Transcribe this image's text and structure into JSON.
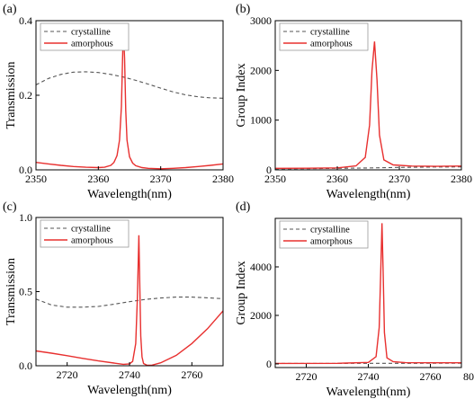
{
  "chart_data": [
    {
      "panel_label": "(a)",
      "type": "line",
      "xlabel": "Wavelength(nm)",
      "ylabel": "Transmission",
      "xlim": [
        2350,
        2380
      ],
      "ylim": [
        0,
        0.4
      ],
      "xticks": [
        2350,
        2360,
        2370,
        2380
      ],
      "yticks": [
        0.0,
        0.2,
        0.4
      ],
      "xtick_labels": [
        "2350",
        "2360",
        "2370",
        "2380"
      ],
      "ytick_labels": [
        "0.0",
        "0.2",
        "0.4"
      ],
      "legend": "top-left",
      "series": [
        {
          "name": "crystalline",
          "style": "dashed",
          "color": "#555555",
          "x": [
            2350,
            2352,
            2354,
            2356,
            2358,
            2360,
            2362,
            2364,
            2366,
            2368,
            2370,
            2372,
            2374,
            2376,
            2378,
            2380
          ],
          "y": [
            0.228,
            0.245,
            0.256,
            0.262,
            0.263,
            0.261,
            0.256,
            0.249,
            0.24,
            0.23,
            0.219,
            0.209,
            0.201,
            0.196,
            0.193,
            0.192
          ]
        },
        {
          "name": "amorphous",
          "style": "solid",
          "color": "#e8302f",
          "x": [
            2350,
            2352,
            2354,
            2356,
            2358,
            2360,
            2361,
            2362,
            2362.5,
            2363,
            2363.4,
            2363.7,
            2364,
            2364.2,
            2364.4,
            2364.6,
            2365,
            2365.5,
            2366,
            2367,
            2368,
            2370,
            2372,
            2374,
            2376,
            2378,
            2380
          ],
          "y": [
            0.02,
            0.016,
            0.012,
            0.009,
            0.007,
            0.006,
            0.007,
            0.012,
            0.02,
            0.038,
            0.08,
            0.17,
            0.38,
            0.3,
            0.16,
            0.08,
            0.035,
            0.018,
            0.011,
            0.006,
            0.004,
            0.003,
            0.004,
            0.006,
            0.009,
            0.012,
            0.016
          ]
        }
      ]
    },
    {
      "panel_label": "(b)",
      "type": "line",
      "xlabel": "Wavelength(nm)",
      "ylabel": "Group Index",
      "xlim": [
        2350,
        2380
      ],
      "ylim": [
        0,
        3000
      ],
      "xticks": [
        2350,
        2360,
        2370,
        2380
      ],
      "yticks": [
        0,
        1000,
        2000,
        3000
      ],
      "xtick_labels": [
        "2350",
        "2360",
        "2370",
        "2380"
      ],
      "ytick_labels": [
        "0",
        "1000",
        "2000",
        "3000"
      ],
      "legend": "top-left",
      "series": [
        {
          "name": "crystalline",
          "style": "dashed",
          "color": "#555555",
          "x": [
            2350,
            2355,
            2360,
            2365,
            2370,
            2375,
            2380
          ],
          "y": [
            20,
            24,
            30,
            38,
            48,
            56,
            60
          ]
        },
        {
          "name": "amorphous",
          "style": "solid",
          "color": "#e8302f",
          "x": [
            2350,
            2355,
            2360,
            2363,
            2364.5,
            2365.2,
            2365.6,
            2366,
            2366.4,
            2366.8,
            2367.5,
            2369,
            2372,
            2376,
            2380
          ],
          "y": [
            30,
            32,
            40,
            80,
            250,
            900,
            2000,
            2580,
            1800,
            700,
            200,
            100,
            75,
            70,
            75
          ]
        }
      ]
    },
    {
      "panel_label": "(c)",
      "type": "line",
      "xlabel": "Wavelength(nm)",
      "ylabel": "Transmission",
      "xlim": [
        2710,
        2770
      ],
      "ylim": [
        0,
        1.0
      ],
      "xticks": [
        2720,
        2740,
        2760
      ],
      "yticks": [
        0.0,
        0.5,
        1.0
      ],
      "xtick_labels": [
        "2720",
        "2740",
        "2760"
      ],
      "ytick_labels": [
        "0.0",
        "0.5",
        "1.0"
      ],
      "legend": "top-left",
      "series": [
        {
          "name": "crystalline",
          "style": "dashed",
          "color": "#555555",
          "x": [
            2710,
            2715,
            2720,
            2725,
            2730,
            2735,
            2740,
            2745,
            2750,
            2755,
            2760,
            2765,
            2770
          ],
          "y": [
            0.45,
            0.41,
            0.395,
            0.395,
            0.4,
            0.415,
            0.432,
            0.447,
            0.457,
            0.463,
            0.463,
            0.458,
            0.452
          ]
        },
        {
          "name": "amorphous",
          "style": "solid",
          "color": "#e8302f",
          "x": [
            2710,
            2715,
            2720,
            2725,
            2730,
            2735,
            2738,
            2740,
            2741,
            2742,
            2742.5,
            2743,
            2743.3,
            2743.6,
            2744,
            2744.5,
            2745.5,
            2747,
            2750,
            2755,
            2760,
            2765,
            2770
          ],
          "y": [
            0.1,
            0.085,
            0.068,
            0.05,
            0.033,
            0.018,
            0.01,
            0.012,
            0.03,
            0.15,
            0.45,
            0.88,
            0.55,
            0.2,
            0.06,
            0.015,
            0.004,
            0.003,
            0.02,
            0.07,
            0.15,
            0.25,
            0.37
          ]
        }
      ]
    },
    {
      "panel_label": "(d)",
      "type": "line",
      "xlabel": "Wavelength(nm)",
      "ylabel": "Group Index",
      "xlim": [
        2710,
        2770
      ],
      "ylim": [
        -150,
        6000
      ],
      "xticks": [
        2720,
        2740,
        2760
      ],
      "yticks": [
        0,
        2000,
        4000
      ],
      "xtick_labels": [
        "2720",
        "2740",
        "2760"
      ],
      "ytick_labels": [
        "0",
        "2000",
        "4000"
      ],
      "legend": "top-left",
      "series": [
        {
          "name": "crystalline",
          "style": "dashed",
          "color": "#555555",
          "x": [
            2710,
            2730,
            2750,
            2770
          ],
          "y": [
            20,
            22,
            25,
            28
          ]
        },
        {
          "name": "amorphous",
          "style": "solid",
          "color": "#e8302f",
          "x": [
            2710,
            2730,
            2740,
            2742.5,
            2743.5,
            2744,
            2744.4,
            2744.8,
            2745.2,
            2746,
            2748,
            2752,
            2760,
            2770
          ],
          "y": [
            20,
            25,
            60,
            300,
            1500,
            3800,
            5800,
            3600,
            1300,
            250,
            90,
            50,
            45,
            45
          ]
        }
      ]
    }
  ],
  "partial_tick": {
    "text": "80"
  }
}
